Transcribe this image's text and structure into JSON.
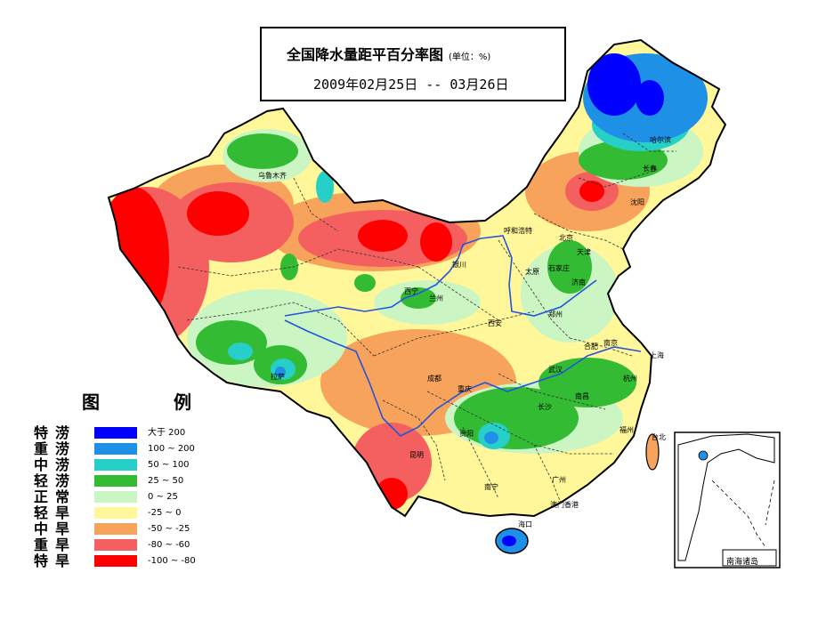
{
  "title": {
    "main": "全国降水量距平百分率图",
    "unit": "(单位：%)",
    "date_range": "2009年02月25日 -- 03月26日"
  },
  "legend": {
    "heading": "图 例",
    "items": [
      {
        "label": "特涝",
        "range": "大于 200",
        "color": "#0000ff"
      },
      {
        "label": "重涝",
        "range": "100 ~ 200",
        "color": "#1e90e6"
      },
      {
        "label": "中涝",
        "range": "50 ~ 100",
        "color": "#26d0c8"
      },
      {
        "label": "轻涝",
        "range": "25 ~ 50",
        "color": "#33bb33"
      },
      {
        "label": "正常",
        "range": "0 ~ 25",
        "color": "#ccf5c4"
      },
      {
        "label": "轻旱",
        "range": "-25 ~ 0",
        "color": "#fff799"
      },
      {
        "label": "中旱",
        "range": "-50 ~ -25",
        "color": "#f7a35c"
      },
      {
        "label": "重旱",
        "range": "-80 ~ -60",
        "color": "#f46060"
      },
      {
        "label": "特旱",
        "range": "-100 ~ -80",
        "color": "#ff0000"
      }
    ]
  },
  "cities": {
    "wulumuqi": "乌鲁木齐",
    "haerbin": "哈尔滨",
    "changchun": "长春",
    "shenyang": "沈阳",
    "huhehaote": "呼和浩特",
    "beijing": "北京",
    "tianjin": "天津",
    "shijiazhuang": "石家庄",
    "taiyuan": "太原",
    "jinan": "济南",
    "yinchuan": "银川",
    "xining": "西宁",
    "lanzhou": "兰州",
    "xian": "西安",
    "zhengzhou": "郑州",
    "hefei": "合肥",
    "nanjing": "南京",
    "shanghai": "上海",
    "hangzhou": "杭州",
    "wuhan": "武汉",
    "changsha": "长沙",
    "nanchang": "南昌",
    "fuzhou": "福州",
    "taibei": "台北",
    "guangzhou": "广州",
    "aomen_xianggang": "澳门香港",
    "nanning": "南宁",
    "haikou": "海口",
    "guiyang": "贵阳",
    "kunming": "昆明",
    "chengdu": "成都",
    "chongqing": "重庆",
    "lasa": "拉萨"
  },
  "inset": {
    "label": "南海诸岛"
  }
}
